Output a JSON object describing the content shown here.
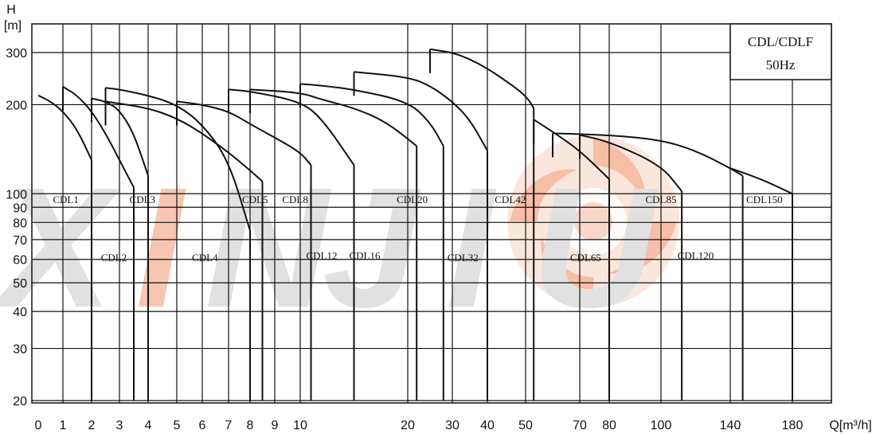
{
  "chart_data": {
    "type": "line",
    "legend": {
      "title": "CDL/CDLF",
      "subtitle": "50Hz",
      "placement": "top-right"
    },
    "ylabel": "H",
    "yunit": "[m]",
    "xlabel": "Q[m³/h]",
    "y_scale": "log",
    "ylim": [
      19,
      350
    ],
    "y_ticks": [
      20,
      30,
      40,
      50,
      60,
      70,
      80,
      90,
      100,
      200,
      300
    ],
    "x_ticks": [
      "0",
      "1",
      "2",
      "3",
      "4",
      "5",
      "6",
      "7",
      "8",
      "9",
      "10",
      "20",
      "30",
      "40",
      "50",
      "70",
      "80",
      "100",
      "140",
      "180"
    ],
    "grid": true,
    "watermark": {
      "text": "XINJIU",
      "colors": [
        "#f4b49a",
        "#d8d8d8"
      ]
    },
    "series": [
      {
        "name": "CDL1",
        "range": [
          0,
          2
        ],
        "upper": [
          [
            0,
            215
          ],
          [
            0.5,
            205
          ],
          [
            1,
            190
          ],
          [
            1.5,
            165
          ],
          [
            2,
            130
          ]
        ],
        "lower_end": 20
      },
      {
        "name": "CDL2",
        "range": [
          1,
          3.5
        ],
        "upper": [
          [
            1,
            230
          ],
          [
            1.5,
            215
          ],
          [
            2,
            190
          ],
          [
            2.5,
            160
          ],
          [
            3,
            130
          ],
          [
            3.5,
            105
          ]
        ],
        "lower_end": 20
      },
      {
        "name": "CDL3",
        "range": [
          2,
          4
        ],
        "upper": [
          [
            2,
            210
          ],
          [
            2.5,
            205
          ],
          [
            3,
            192
          ],
          [
            3.5,
            160
          ],
          [
            4,
            115
          ]
        ],
        "lower_end": 20
      },
      {
        "name": "CDL4",
        "range": [
          2.5,
          8
        ],
        "upper": [
          [
            2.5,
            228
          ],
          [
            3,
            225
          ],
          [
            4,
            215
          ],
          [
            5,
            200
          ],
          [
            6,
            172
          ],
          [
            7,
            130
          ],
          [
            8,
            75
          ]
        ],
        "lower_end": 20
      },
      {
        "name": "CDL5",
        "range": [
          2.5,
          8.5
        ],
        "upper": [
          [
            2.5,
            205
          ],
          [
            4,
            195
          ],
          [
            5,
            180
          ],
          [
            6,
            160
          ],
          [
            7,
            138
          ],
          [
            8,
            120
          ],
          [
            8.5,
            110
          ]
        ],
        "lower_end": 20
      },
      {
        "name": "CDL8",
        "range": [
          5,
          11
        ],
        "upper": [
          [
            5,
            205
          ],
          [
            6,
            200
          ],
          [
            7,
            190
          ],
          [
            8,
            172
          ],
          [
            9,
            155
          ],
          [
            10,
            138
          ],
          [
            11,
            125
          ]
        ],
        "lower_end": 20
      },
      {
        "name": "CDL12",
        "range": [
          7,
          15
        ],
        "upper": [
          [
            7,
            225
          ],
          [
            8,
            222
          ],
          [
            10,
            205
          ],
          [
            12,
            180
          ],
          [
            15,
            125
          ]
        ],
        "lower_end": 20
      },
      {
        "name": "CDL16",
        "range": [
          8,
          22
        ],
        "upper": [
          [
            8,
            225
          ],
          [
            10,
            220
          ],
          [
            12,
            208
          ],
          [
            15,
            195
          ],
          [
            18,
            175
          ],
          [
            22,
            145
          ]
        ],
        "lower_end": 20
      },
      {
        "name": "CDL20",
        "range": [
          10,
          28
        ],
        "upper": [
          [
            10,
            235
          ],
          [
            12,
            232
          ],
          [
            15,
            225
          ],
          [
            20,
            205
          ],
          [
            25,
            175
          ],
          [
            28,
            145
          ]
        ],
        "lower_end": 20
      },
      {
        "name": "CDL32",
        "range": [
          15,
          40
        ],
        "upper": [
          [
            15,
            258
          ],
          [
            20,
            248
          ],
          [
            25,
            232
          ],
          [
            30,
            205
          ],
          [
            35,
            178
          ],
          [
            40,
            140
          ]
        ],
        "lower_end": 20
      },
      {
        "name": "CDL42",
        "range": [
          25,
          53
        ],
        "upper": [
          [
            25,
            308
          ],
          [
            30,
            300
          ],
          [
            35,
            285
          ],
          [
            40,
            265
          ],
          [
            45,
            240
          ],
          [
            50,
            215
          ],
          [
            53,
            195
          ]
        ],
        "lower_end": 20
      },
      {
        "name": "CDL65",
        "range": [
          53,
          80
        ],
        "upper": [
          [
            53,
            178
          ],
          [
            60,
            162
          ],
          [
            70,
            140
          ],
          [
            80,
            112
          ]
        ],
        "lower_end": 20
      },
      {
        "name": "CDL85",
        "range": [
          70,
          112
        ],
        "upper": [
          [
            70,
            158
          ],
          [
            80,
            150
          ],
          [
            100,
            125
          ],
          [
            112,
            102
          ]
        ],
        "lower_end": 20
      },
      {
        "name": "CDL120",
        "range": [
          60,
          148
        ],
        "upper": [
          [
            60,
            160
          ],
          [
            80,
            158
          ],
          [
            100,
            152
          ],
          [
            120,
            140
          ],
          [
            140,
            122
          ],
          [
            148,
            115
          ]
        ],
        "lower_end": 20
      },
      {
        "name": "CDL150",
        "range": [
          140,
          180
        ],
        "upper": [
          [
            140,
            122
          ],
          [
            160,
            112
          ],
          [
            180,
            100
          ]
        ],
        "lower_end": 20
      }
    ],
    "series_labels": [
      "CDL1",
      "CDL2",
      "CDL3",
      "CDL4",
      "CDL5",
      "CDL8",
      "CDL12",
      "CDL16",
      "CDL20",
      "CDL32",
      "CDL42",
      "CDL65",
      "CDL85",
      "CDL120",
      "CDL150"
    ]
  }
}
